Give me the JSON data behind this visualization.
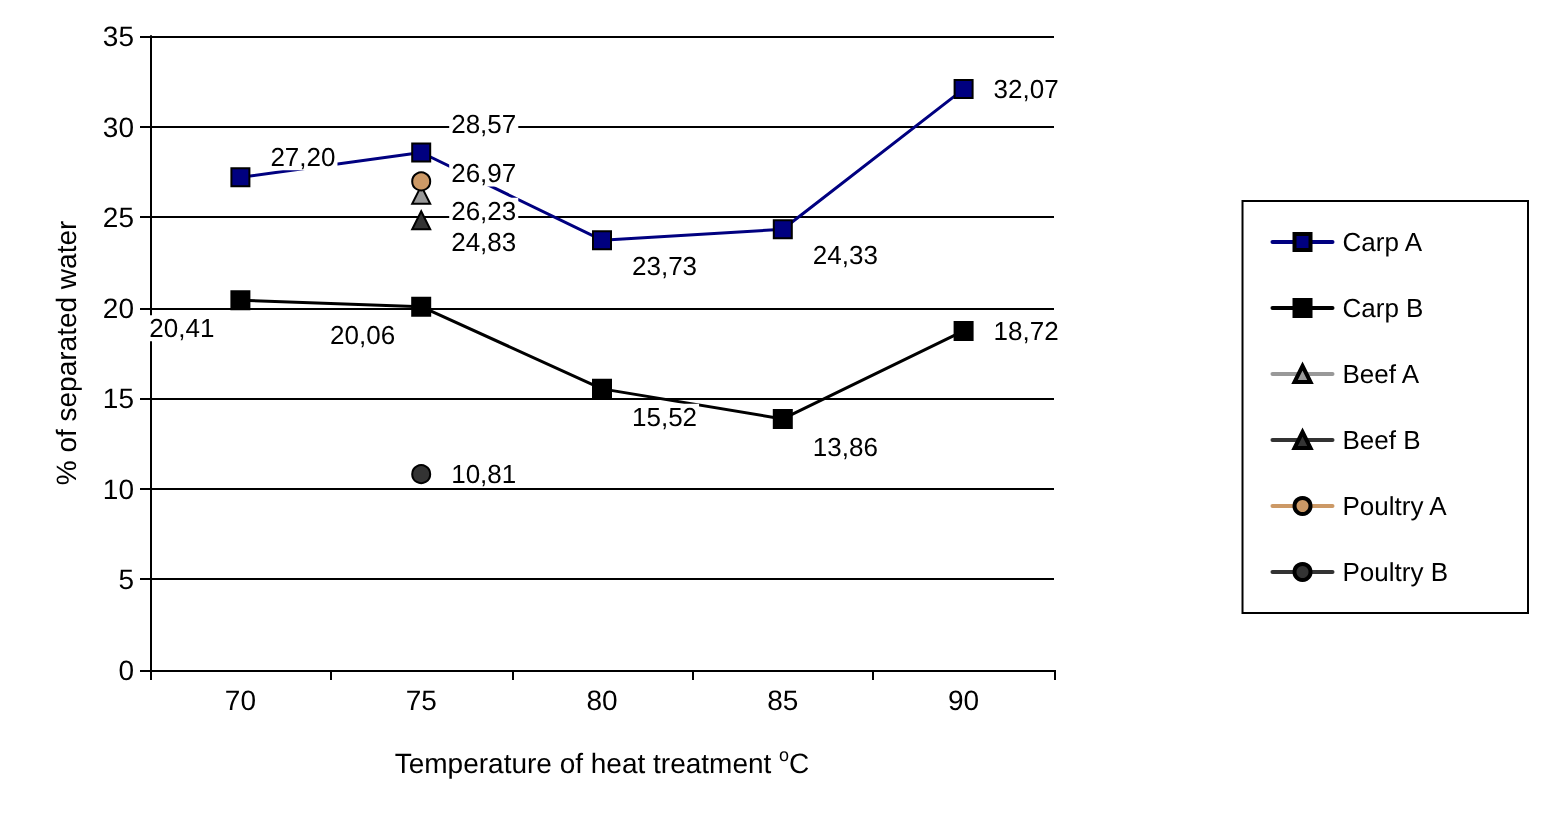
{
  "chart_data": {
    "type": "line",
    "xlabel": "Temperature of heat treatment $^{o}$C",
    "ylabel": "% of separated water",
    "categories": [
      "70",
      "75",
      "80",
      "85",
      "90"
    ],
    "ylim": [
      0,
      35
    ],
    "yticks": [
      0,
      5,
      10,
      15,
      20,
      25,
      30,
      35
    ],
    "grid": "y",
    "legend": "right",
    "series": [
      {
        "name": "Carp A",
        "color": "#000080",
        "marker": "square",
        "values": [
          27.2,
          28.57,
          23.73,
          24.33,
          32.07
        ],
        "value_labels": [
          "27,20",
          "28,57",
          "23,73",
          "24,33",
          "32,07"
        ]
      },
      {
        "name": "Carp B",
        "color": "#000000",
        "marker": "square",
        "values": [
          20.41,
          20.06,
          15.52,
          13.86,
          18.72
        ],
        "value_labels": [
          "20,41",
          "20,06",
          "15,52",
          "13,86",
          "18,72"
        ]
      },
      {
        "name": "Beef A",
        "color": "#999999",
        "marker": "triangle",
        "values": [
          null,
          26.23,
          null,
          null,
          null
        ],
        "value_labels": [
          null,
          "26,23",
          null,
          null,
          null
        ]
      },
      {
        "name": "Beef B",
        "color": "#333333",
        "marker": "triangle",
        "values": [
          null,
          24.83,
          null,
          null,
          null
        ],
        "value_labels": [
          null,
          "24,83",
          null,
          null,
          null
        ]
      },
      {
        "name": "Poultry A",
        "color": "#cc9966",
        "marker": "circle",
        "values": [
          null,
          26.97,
          null,
          null,
          null
        ],
        "value_labels": [
          null,
          "26,97",
          null,
          null,
          null
        ]
      },
      {
        "name": "Poultry B",
        "color": "#333333",
        "marker": "circle",
        "values": [
          null,
          10.81,
          null,
          null,
          null
        ],
        "value_labels": [
          null,
          "10,81",
          null,
          null,
          null
        ]
      }
    ]
  }
}
